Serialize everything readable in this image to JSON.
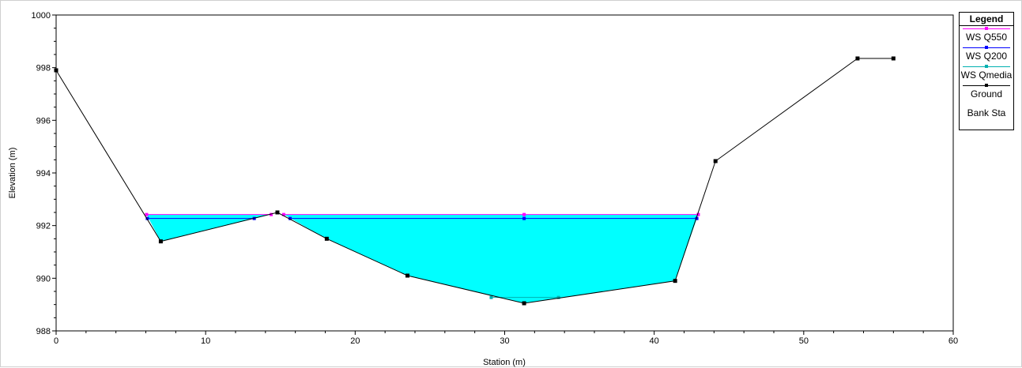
{
  "chart_data": {
    "type": "line",
    "title": "",
    "xlabel": "Station (m)",
    "ylabel": "Elevation (m)",
    "xlim": [
      0,
      60
    ],
    "ylim": [
      988,
      1000
    ],
    "x_ticks": [
      0,
      10,
      20,
      30,
      40,
      50,
      60
    ],
    "y_ticks": [
      988,
      990,
      992,
      994,
      996,
      998,
      1000
    ],
    "grid": false,
    "legend_position": "right",
    "legend_title": "Legend",
    "ground": {
      "name": "Ground",
      "color": "#000000",
      "x": [
        0,
        7.0,
        14.8,
        18.1,
        23.5,
        31.3,
        41.4,
        44.1,
        53.6,
        56.0
      ],
      "y": [
        997.9,
        991.4,
        992.5,
        991.5,
        990.1,
        989.05,
        989.9,
        994.45,
        998.35,
        998.35
      ]
    },
    "water_surfaces": [
      {
        "name": "WS Q550",
        "color": "#ff00ff",
        "elevation": 992.42,
        "x_segments": [
          [
            6.05,
            14.38
          ],
          [
            15.22,
            42.95
          ]
        ]
      },
      {
        "name": "WS Q200",
        "color": "#0000ff",
        "elevation": 992.27,
        "x_segments": [
          [
            6.1,
            13.25
          ],
          [
            15.65,
            42.85
          ]
        ]
      },
      {
        "name": "WS Qmedia",
        "color": "#00b0b0",
        "elevation": 989.27,
        "x_segments": [
          [
            29.1,
            33.6
          ]
        ]
      }
    ],
    "bank_sta": {
      "name": "Bank Sta"
    },
    "fill_color": "#00ffff"
  },
  "legend": {
    "title": "Legend",
    "items": [
      {
        "label": "WS Q550",
        "color": "#ff00ff"
      },
      {
        "label": "WS Q200",
        "color": "#0000ff"
      },
      {
        "label": "WS Qmedia",
        "color": "#00b0b0"
      },
      {
        "label": "Ground",
        "color": "#000000"
      },
      {
        "label": "Bank Sta",
        "color": ""
      }
    ]
  }
}
